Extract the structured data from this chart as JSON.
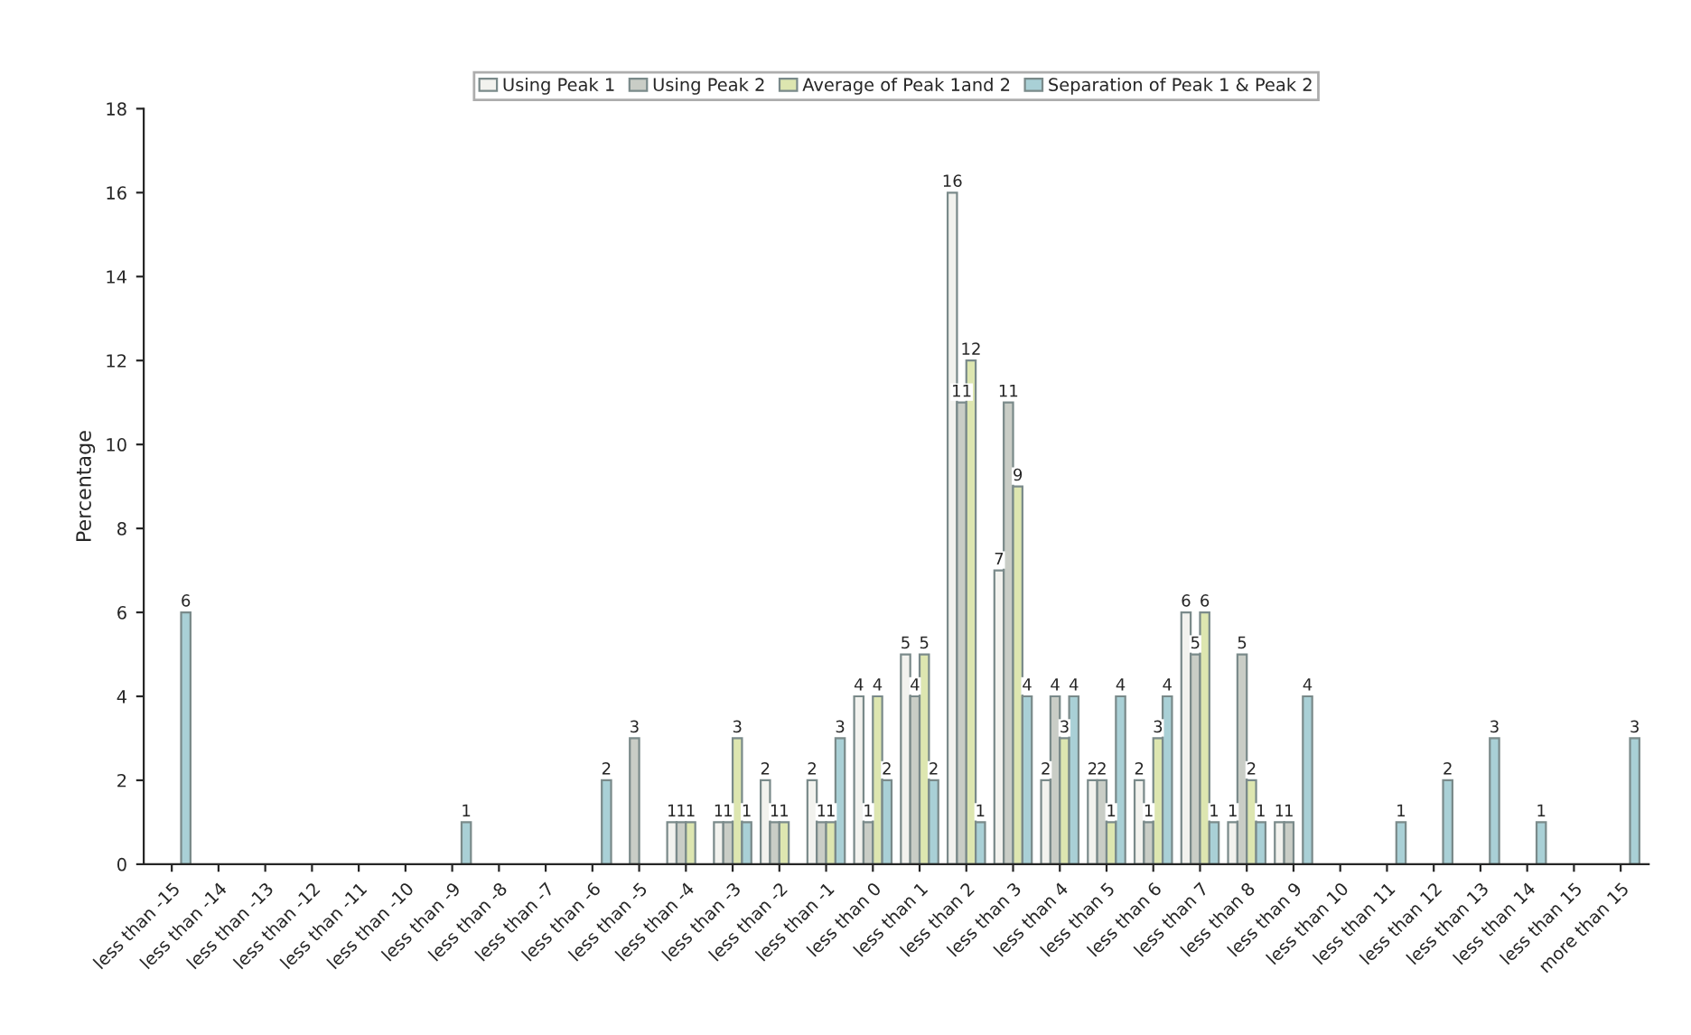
{
  "chart_data": {
    "type": "bar",
    "ylabel": "Percentage",
    "categories": [
      "less than -15",
      "less than -14",
      "less than -13",
      "less than -12",
      "less than -11",
      "less than -10",
      "less than -9",
      "less than -8",
      "less than -7",
      "less than -6",
      "less than -5",
      "less than -4",
      "less than -3",
      "less than -2",
      "less than -1",
      "less than 0",
      "less than 1",
      "less than 2",
      "less than 3",
      "less than 4",
      "less than 5",
      "less than 6",
      "less than 7",
      "less than 8",
      "less than 9",
      "less than 10",
      "less than 11",
      "less than 12",
      "less than 13",
      "less than 14",
      "less than 15",
      "more than 15"
    ],
    "series": [
      {
        "name": "Using Peak 1",
        "color": "#f2f2ee",
        "values": [
          null,
          null,
          null,
          null,
          null,
          null,
          null,
          null,
          null,
          null,
          null,
          1,
          1,
          2,
          2,
          4,
          5,
          16,
          7,
          2,
          2,
          2,
          6,
          1,
          1,
          null,
          null,
          null,
          null,
          null,
          null,
          null
        ]
      },
      {
        "name": "Using Peak 2",
        "color": "#c9cdc6",
        "values": [
          null,
          null,
          null,
          null,
          null,
          null,
          null,
          null,
          null,
          null,
          3,
          1,
          1,
          1,
          1,
          1,
          4,
          11,
          11,
          4,
          2,
          1,
          5,
          5,
          1,
          null,
          null,
          null,
          null,
          null,
          null,
          null
        ]
      },
      {
        "name": "Average of Peak 1and 2",
        "color": "#dde6b0",
        "values": [
          null,
          null,
          null,
          null,
          null,
          null,
          null,
          null,
          null,
          null,
          null,
          1,
          3,
          1,
          1,
          4,
          5,
          12,
          9,
          3,
          1,
          3,
          6,
          2,
          null,
          null,
          null,
          null,
          null,
          null,
          null,
          null
        ]
      },
      {
        "name": "Separation of Peak 1 & Peak 2",
        "color": "#a9d0d6",
        "values": [
          6,
          null,
          null,
          null,
          null,
          null,
          1,
          null,
          null,
          2,
          null,
          null,
          1,
          null,
          3,
          2,
          2,
          1,
          4,
          4,
          4,
          4,
          1,
          1,
          4,
          null,
          1,
          2,
          3,
          1,
          null,
          3
        ]
      }
    ],
    "ylim": [
      0,
      18
    ],
    "yticks": [
      0,
      2,
      4,
      6,
      8,
      10,
      12,
      14,
      16,
      18
    ],
    "grid": false,
    "legend": "top",
    "data_labels": true
  }
}
